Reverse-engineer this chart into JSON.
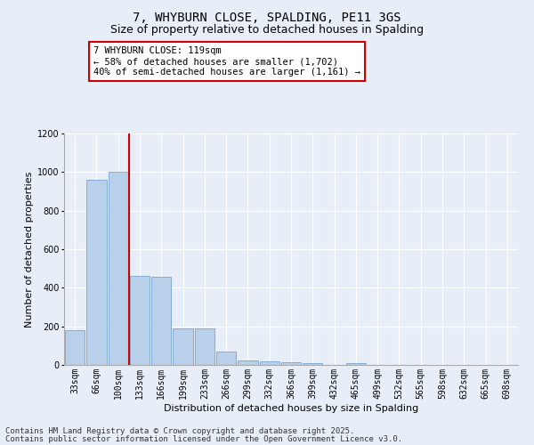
{
  "title": "7, WHYBURN CLOSE, SPALDING, PE11 3GS",
  "subtitle": "Size of property relative to detached houses in Spalding",
  "xlabel": "Distribution of detached houses by size in Spalding",
  "ylabel": "Number of detached properties",
  "categories": [
    "33sqm",
    "66sqm",
    "100sqm",
    "133sqm",
    "166sqm",
    "199sqm",
    "233sqm",
    "266sqm",
    "299sqm",
    "332sqm",
    "366sqm",
    "399sqm",
    "432sqm",
    "465sqm",
    "499sqm",
    "532sqm",
    "565sqm",
    "598sqm",
    "632sqm",
    "665sqm",
    "698sqm"
  ],
  "values": [
    180,
    960,
    1000,
    460,
    455,
    190,
    190,
    70,
    25,
    20,
    13,
    7,
    0,
    7,
    0,
    0,
    0,
    0,
    0,
    0,
    0
  ],
  "bar_color": "#b8d0ea",
  "bar_edge_color": "#6699cc",
  "bar_edge_width": 0.5,
  "vline_color": "#cc0000",
  "annotation_text": "7 WHYBURN CLOSE: 119sqm\n← 58% of detached houses are smaller (1,702)\n40% of semi-detached houses are larger (1,161) →",
  "annotation_box_color": "#ffffff",
  "annotation_box_edge": "#cc0000",
  "footer_line1": "Contains HM Land Registry data © Crown copyright and database right 2025.",
  "footer_line2": "Contains public sector information licensed under the Open Government Licence v3.0.",
  "ylim": [
    0,
    1200
  ],
  "yticks": [
    0,
    200,
    400,
    600,
    800,
    1000,
    1200
  ],
  "background_color": "#e8eef8",
  "plot_bg_color": "#e8eef8",
  "grid_color": "#ffffff",
  "title_fontsize": 10,
  "subtitle_fontsize": 9,
  "axis_label_fontsize": 8,
  "tick_fontsize": 7,
  "annotation_fontsize": 7.5,
  "footer_fontsize": 6.5
}
